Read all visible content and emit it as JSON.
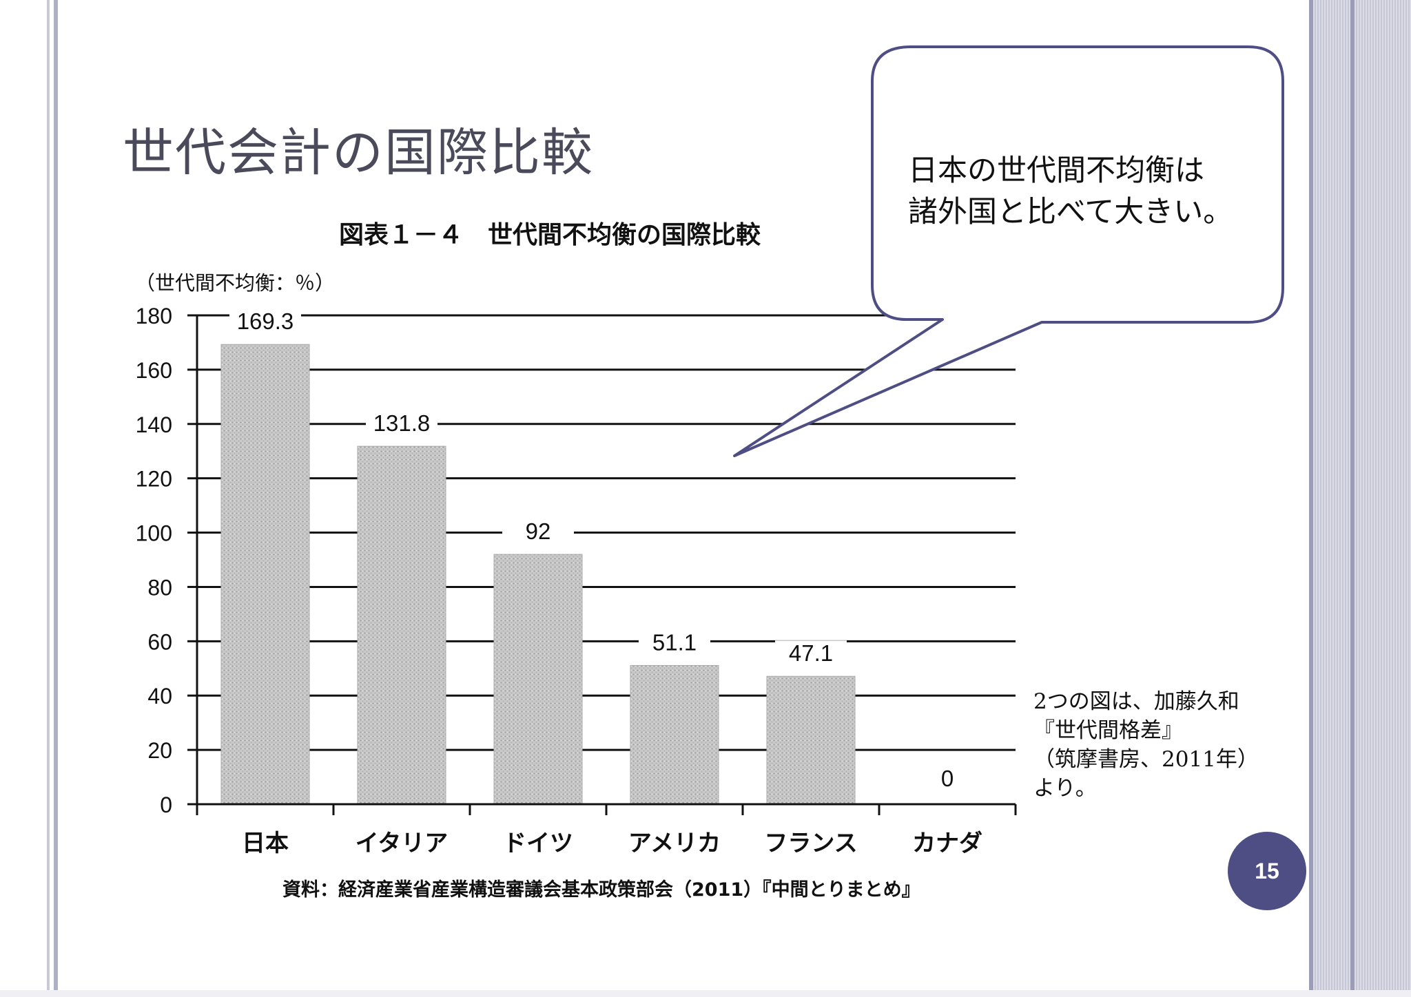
{
  "slide": {
    "title": "世代会計の国際比較",
    "page_number": "15",
    "callout": {
      "line1": "日本の世代間不均衡は",
      "line2": "諸外国と比べて大きい。"
    },
    "note": {
      "line1": "2つの図は、加藤久和",
      "line2": "『世代間格差』",
      "line3": "（筑摩書房、2011年）",
      "line4": "より。"
    }
  },
  "chart_data": {
    "type": "bar",
    "title": "図表１－４　世代間不均衡の国際比較",
    "ylabel": "（世代間不均衡：％）",
    "xlabel": "",
    "categories": [
      "日本",
      "イタリア",
      "ドイツ",
      "アメリカ",
      "フランス",
      "カナダ"
    ],
    "values": [
      169.3,
      131.8,
      92,
      51.1,
      47.1,
      0
    ],
    "data_labels": [
      "169.3",
      "131.8",
      "92",
      "51.1",
      "47.1",
      "0"
    ],
    "ylim": [
      0,
      180
    ],
    "yticks": [
      "0",
      "20",
      "40",
      "60",
      "80",
      "100",
      "120",
      "140",
      "160",
      "180"
    ],
    "grid": true,
    "source": "資料：経済産業省産業構造審議会基本政策部会（2011）『中間とりまとめ』",
    "colors": {
      "bar": "#c8c8c8",
      "grid": "#111111",
      "callout_border": "#4e4e84"
    }
  }
}
